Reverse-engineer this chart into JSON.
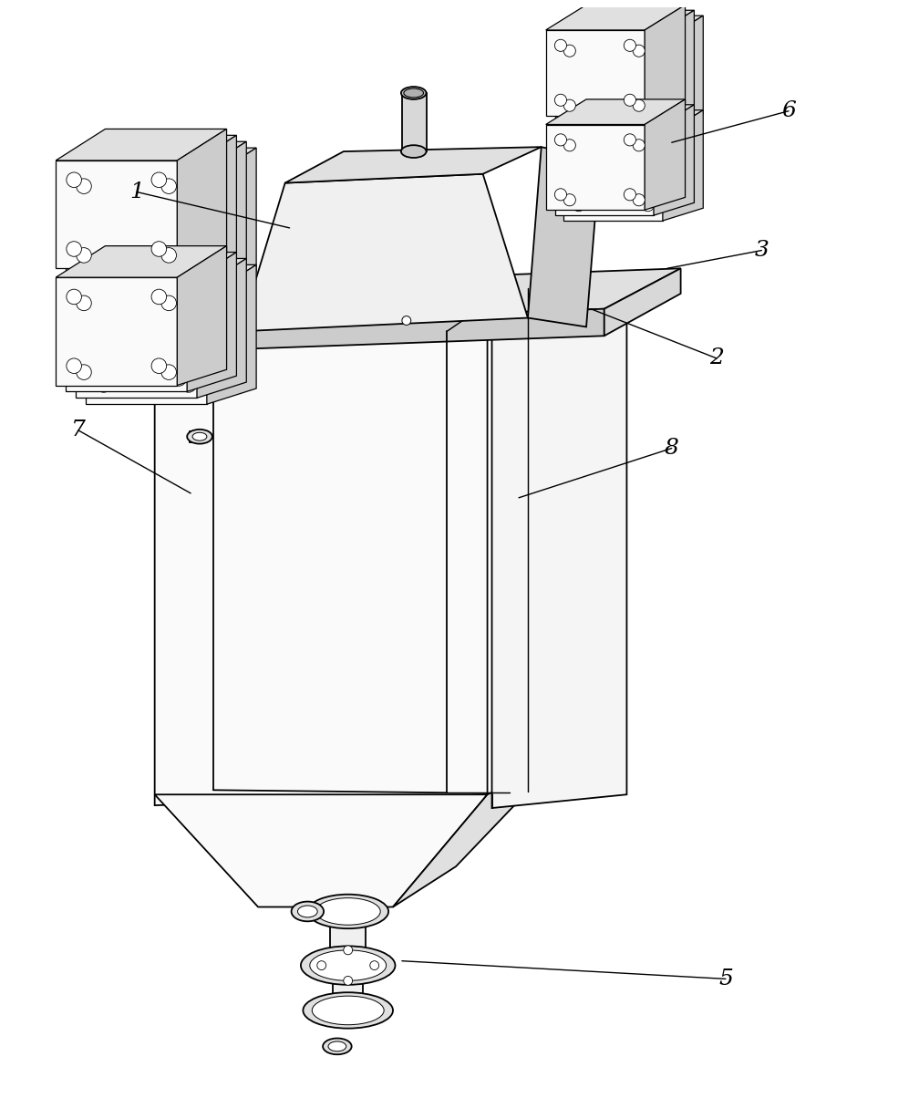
{
  "background_color": "#ffffff",
  "line_color": "#000000",
  "fig_width": 10.08,
  "fig_height": 12.04,
  "label_fontsize": 18,
  "lw": 1.3,
  "fill_light": "#f0f0f0",
  "fill_mid": "#e0e0e0",
  "fill_dark": "#cccccc",
  "fill_white": "#fafafa"
}
